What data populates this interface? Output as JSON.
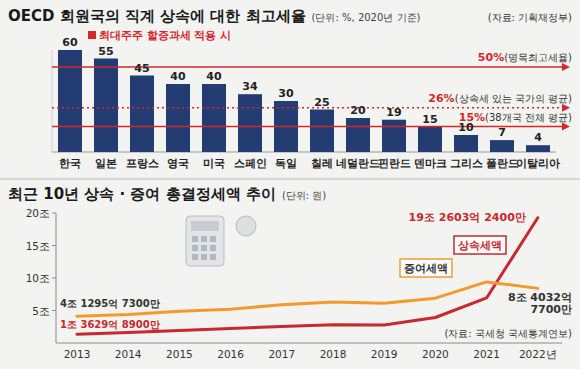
{
  "chart_data": [
    {
      "type": "bar",
      "title": "OECD 회원국의 직계 상속에 대한 최고세율",
      "subtitle": "(단위: %, 2020년 기준)",
      "source": "(자료: 기획재정부)",
      "annotation": "최대주주 할증과세 적용 시",
      "categories": [
        "한국",
        "일본",
        "프랑스",
        "영국",
        "미국",
        "스페인",
        "독일",
        "칠레",
        "네덜란드",
        "핀란드",
        "덴마크",
        "그리스",
        "폴란드",
        "이탈리아"
      ],
      "values": [
        60,
        55,
        45,
        40,
        40,
        34,
        30,
        25,
        20,
        19,
        15,
        10,
        7,
        4
      ],
      "color": "#233d73",
      "ylim": [
        0,
        60
      ],
      "tick_labels": "x",
      "data_labels": true,
      "reference_lines": [
        {
          "value": 50,
          "label": "50%",
          "text": "(명목최고세율)",
          "line_style": "solid"
        },
        {
          "value": 26,
          "label": "26%",
          "text": "(상속세 있는 국가의 평균)",
          "line_style": "dotted"
        },
        {
          "value": 15,
          "label": "15%",
          "text": "(38개국 전체 평균)",
          "line_style": "solid"
        }
      ]
    },
    {
      "type": "line",
      "title": "최근 10년 상속 · 증여 총결정세액 추이",
      "subtitle": "(단위: 원)",
      "source": "(자료: 국세청 국세통계연보)",
      "categories": [
        "2013",
        "2014",
        "2015",
        "2016",
        "2017",
        "2018",
        "2019",
        "2020",
        "2021",
        "2022년"
      ],
      "ylim": [
        0,
        20
      ],
      "yticks": [
        {
          "value": 5,
          "label": "5조"
        },
        {
          "value": 10,
          "label": "10조"
        },
        {
          "value": 15,
          "label": "15조"
        },
        {
          "value": 20,
          "label": "20조"
        }
      ],
      "grid": false,
      "data_labels": true,
      "series": [
        {
          "name": "상속세액",
          "color": "#c8282e",
          "values": [
            1.362989,
            1.62,
            1.93,
            2.24,
            2.53,
            2.8,
            2.77,
            3.92,
            6.93,
            19.260324
          ],
          "value_labels": [
            "1조 3629억 8900만",
            null,
            null,
            null,
            null,
            null,
            null,
            null,
            null,
            "19조 2603억 2400만"
          ]
        },
        {
          "name": "증여세액",
          "color": "#f39a2e",
          "values": [
            4.129573,
            4.4,
            4.9,
            5.2,
            5.9,
            6.3,
            6.1,
            6.9,
            9.4,
            8.403277
          ],
          "value_labels": [
            "4조 1295억 7300만",
            null,
            null,
            null,
            null,
            null,
            null,
            null,
            null,
            "8조 4032억 7700만"
          ]
        }
      ]
    }
  ]
}
